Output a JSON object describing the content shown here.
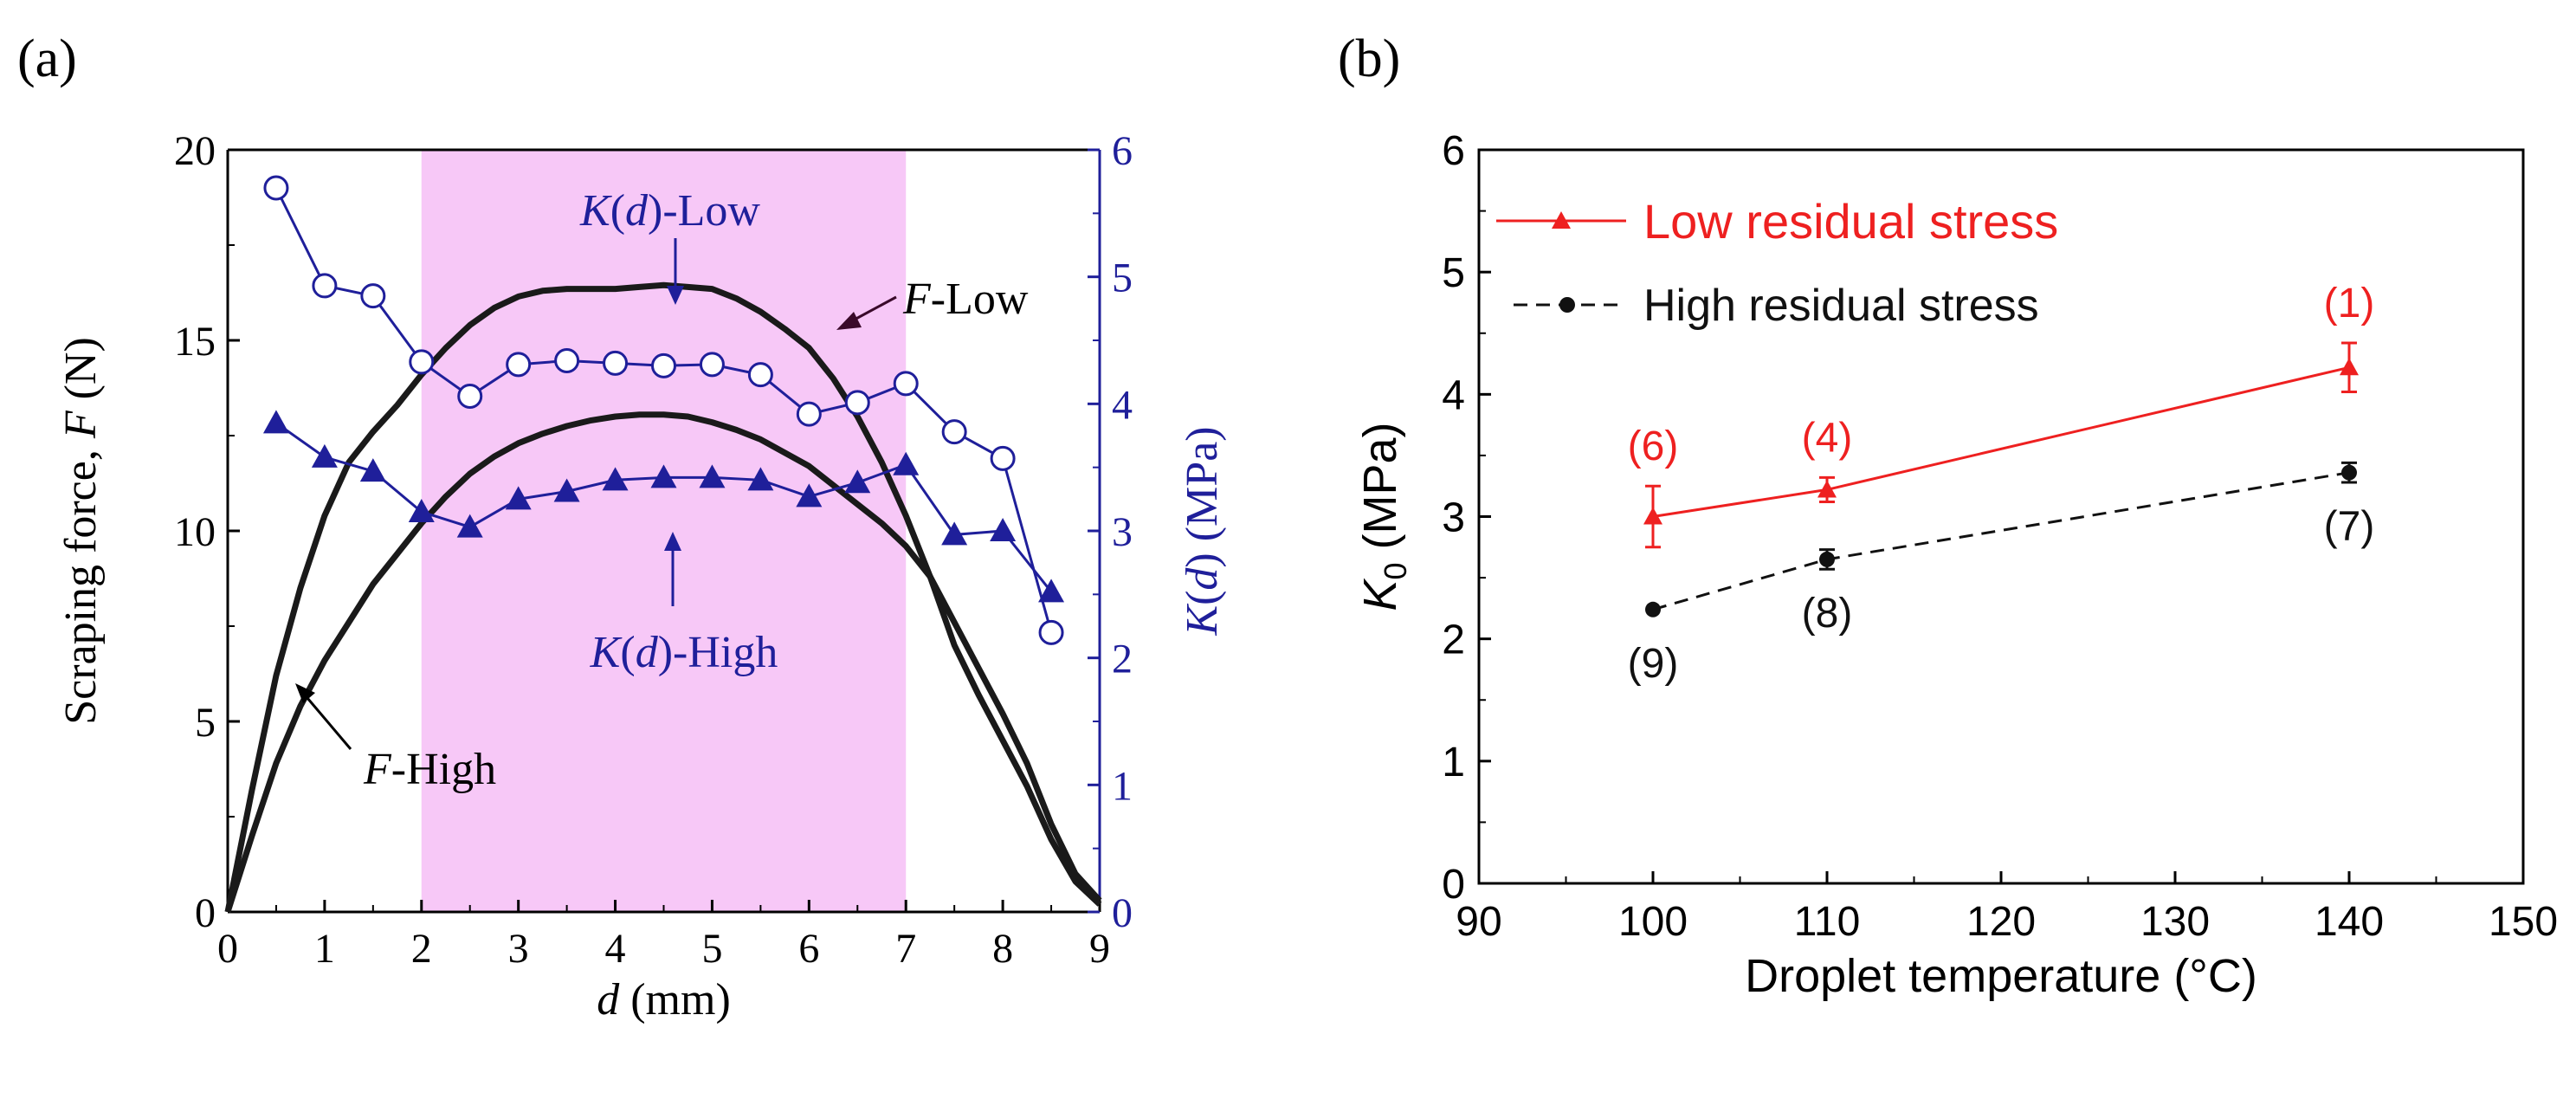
{
  "colors": {
    "axis": "#000000",
    "blue": "#1f1f9a",
    "shade": "#f7c8f7",
    "force": "#1a1a1a",
    "red": "#ee2020",
    "black": "#111111"
  },
  "panels": {
    "a_label": "(a)",
    "b_label": "(b)"
  },
  "chart_data": [
    {
      "type": "line",
      "panel": "(a)",
      "xlabel_var": "d",
      "xlabel_unit": " (mm)",
      "ylabel_left": "Scraping force, ",
      "ylabel_left_var": "F",
      "ylabel_left_unit": " (N)",
      "ylabel_right_pre": "K",
      "ylabel_right_mid": "(",
      "ylabel_right_var": "d",
      "ylabel_right_unit": ") (MPa)",
      "xlim": [
        0,
        9
      ],
      "ylim_left": [
        0,
        20
      ],
      "ylim_right": [
        0,
        6
      ],
      "xticks": [
        0,
        1,
        2,
        3,
        4,
        5,
        6,
        7,
        8,
        9
      ],
      "yticks_left": [
        0,
        5,
        10,
        15,
        20
      ],
      "yticks_right": [
        0,
        1,
        2,
        3,
        4,
        5,
        6
      ],
      "shaded_region_x": [
        2,
        7
      ],
      "series": [
        {
          "name": "K(d)-Low",
          "axis": "right",
          "marker": "open-circle",
          "x": [
            0.5,
            1.0,
            1.5,
            2.0,
            2.5,
            3.0,
            3.5,
            4.0,
            4.5,
            5.0,
            5.5,
            6.0,
            6.5,
            7.0,
            7.5,
            8.0,
            8.5
          ],
          "y": [
            5.7,
            4.93,
            4.85,
            4.33,
            4.06,
            4.31,
            4.34,
            4.32,
            4.3,
            4.31,
            4.23,
            3.92,
            4.01,
            4.16,
            3.78,
            3.57,
            2.2
          ]
        },
        {
          "name": "K(d)-High",
          "axis": "right",
          "marker": "filled-triangle",
          "x": [
            0.5,
            1.0,
            1.5,
            2.0,
            2.5,
            3.0,
            3.5,
            4.0,
            4.5,
            5.0,
            5.5,
            6.0,
            6.5,
            7.0,
            7.5,
            8.0,
            8.5
          ],
          "y": [
            3.85,
            3.58,
            3.47,
            3.15,
            3.03,
            3.25,
            3.31,
            3.4,
            3.42,
            3.42,
            3.4,
            3.27,
            3.38,
            3.52,
            2.97,
            3.0,
            2.52
          ]
        },
        {
          "name": "F-Low",
          "axis": "left",
          "marker": "none",
          "x": [
            0,
            0.25,
            0.5,
            0.75,
            1.0,
            1.25,
            1.5,
            1.75,
            2.0,
            2.25,
            2.5,
            2.75,
            3.0,
            3.25,
            3.5,
            3.75,
            4.0,
            4.25,
            4.5,
            4.75,
            5.0,
            5.25,
            5.5,
            5.75,
            6.0,
            6.25,
            6.5,
            6.75,
            7.0,
            7.25,
            7.5,
            7.75,
            8.0,
            8.25,
            8.5,
            8.75,
            9.0
          ],
          "y": [
            0,
            3.2,
            6.2,
            8.5,
            10.4,
            11.8,
            12.6,
            13.3,
            14.1,
            14.8,
            15.4,
            15.85,
            16.15,
            16.3,
            16.35,
            16.35,
            16.35,
            16.4,
            16.45,
            16.4,
            16.35,
            16.1,
            15.75,
            15.3,
            14.8,
            14.0,
            13.0,
            11.8,
            10.4,
            8.8,
            7.0,
            5.7,
            4.5,
            3.3,
            1.9,
            0.8,
            0.2
          ]
        },
        {
          "name": "F-High",
          "axis": "left",
          "marker": "none",
          "x": [
            0,
            0.25,
            0.5,
            0.75,
            1.0,
            1.25,
            1.5,
            1.75,
            2.0,
            2.25,
            2.5,
            2.75,
            3.0,
            3.25,
            3.5,
            3.75,
            4.0,
            4.25,
            4.5,
            4.75,
            5.0,
            5.25,
            5.5,
            5.75,
            6.0,
            6.25,
            6.5,
            6.75,
            7.0,
            7.25,
            7.5,
            7.75,
            8.0,
            8.25,
            8.5,
            8.75,
            9.0
          ],
          "y": [
            0,
            2.0,
            3.9,
            5.4,
            6.6,
            7.6,
            8.6,
            9.4,
            10.2,
            10.9,
            11.5,
            11.95,
            12.3,
            12.55,
            12.75,
            12.9,
            13.0,
            13.05,
            13.05,
            13.0,
            12.85,
            12.65,
            12.4,
            12.05,
            11.7,
            11.2,
            10.7,
            10.2,
            9.6,
            8.8,
            7.6,
            6.4,
            5.2,
            3.9,
            2.3,
            1.0,
            0.3
          ]
        }
      ],
      "annotations": [
        {
          "var": "K",
          "rest_a": "(",
          "var2": "d",
          "rest_b": ")-Low"
        },
        {
          "var": "K",
          "rest_a": "(",
          "var2": "d",
          "rest_b": ")-High"
        },
        {
          "var": "F",
          "rest_b": "-Low"
        },
        {
          "var": "F",
          "rest_b": "-High"
        }
      ]
    },
    {
      "type": "line",
      "panel": "(b)",
      "xlabel": "Droplet temperature (°C)",
      "ylabel_var": "K",
      "ylabel_sub": "0",
      "ylabel_unit": " (MPa)",
      "xlim": [
        90,
        150
      ],
      "ylim": [
        0,
        6
      ],
      "xticks": [
        90,
        100,
        110,
        120,
        130,
        140,
        150
      ],
      "yticks": [
        0,
        1,
        2,
        3,
        4,
        5,
        6
      ],
      "legend_position": "top-left",
      "series": [
        {
          "name": "Low residual stress",
          "style": "solid",
          "marker": "filled-triangle",
          "x": [
            100,
            110,
            140
          ],
          "y": [
            3.0,
            3.22,
            4.22
          ],
          "err": [
            0.25,
            0.1,
            0.2
          ],
          "point_labels": [
            "(6)",
            "(4)",
            "(1)"
          ]
        },
        {
          "name": "High residual stress",
          "style": "dashed",
          "marker": "filled-circle",
          "x": [
            100,
            110,
            140
          ],
          "y": [
            2.24,
            2.65,
            3.36
          ],
          "err": [
            0.0,
            0.08,
            0.08
          ],
          "point_labels": [
            "(9)",
            "(8)",
            "(7)"
          ]
        }
      ]
    }
  ]
}
